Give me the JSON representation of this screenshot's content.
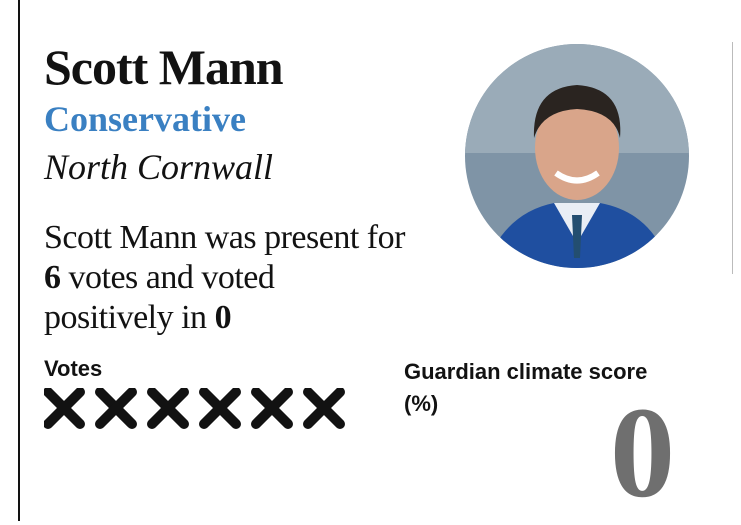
{
  "profile": {
    "name": "Scott Mann",
    "party": "Conservative",
    "constituency": "North Cornwall"
  },
  "summary": {
    "intro": "Scott Mann was present for",
    "present": 6,
    "middle": "votes and voted",
    "outro": "positively in",
    "positive": 0
  },
  "votes": {
    "label": "Votes"
  },
  "score": {
    "label": "Guardian climate score (%)",
    "value": 0
  }
}
